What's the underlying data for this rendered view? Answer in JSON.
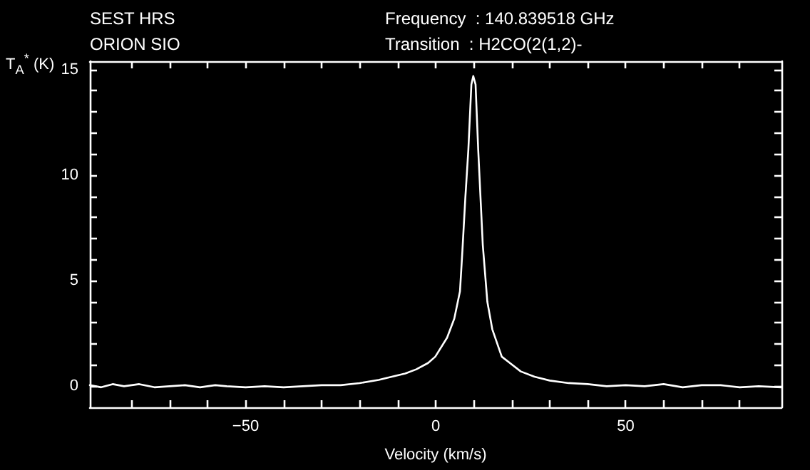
{
  "chart_data": {
    "type": "line",
    "annotations": [
      "SEST HRS",
      "ORION SIO",
      "Frequency  : 140.839518 GHz",
      "Transition  : H2CO(2(1,2)-"
    ],
    "xlabel": "Velocity (km/s)",
    "ylabel": "T$_{A}$$^{*}$ (K)",
    "xlim": [
      -91,
      91
    ],
    "ylim": [
      -1,
      15.4
    ],
    "xticks": [
      {
        "value": -80,
        "label": null
      },
      {
        "value": -70,
        "label": null
      },
      {
        "value": -60,
        "label": null
      },
      -50,
      {
        "value": -40,
        "label": null
      },
      {
        "value": -30,
        "label": null
      },
      {
        "value": -20,
        "label": null
      },
      {
        "value": -10,
        "label": null
      },
      0,
      {
        "value": 10,
        "label": null
      },
      {
        "value": 20,
        "label": null
      },
      {
        "value": 30,
        "label": null
      },
      {
        "value": 40,
        "label": null
      },
      50,
      {
        "value": 60,
        "label": null
      },
      {
        "value": 70,
        "label": null
      },
      {
        "value": 80,
        "label": null
      }
    ],
    "yticks": [
      0,
      {
        "value": 1,
        "label": null
      },
      {
        "value": 2,
        "label": null
      },
      {
        "value": 3,
        "label": null
      },
      {
        "value": 4,
        "label": null
      },
      5,
      {
        "value": 6,
        "label": null
      },
      {
        "value": 7,
        "label": null
      },
      {
        "value": 8,
        "label": null
      },
      {
        "value": 9,
        "label": null
      },
      10,
      {
        "value": 11,
        "label": null
      },
      {
        "value": 12,
        "label": null
      },
      {
        "value": 13,
        "label": null
      },
      {
        "value": 14,
        "label": null
      },
      15
    ],
    "grid": false,
    "marker": "none",
    "line_style": "solid",
    "series": [
      {
        "color": "#ffffff",
        "x": [
          -91,
          -88,
          -85,
          -82,
          -78,
          -74,
          -70,
          -66,
          -62,
          -58,
          -55,
          -50,
          -45,
          -40,
          -35,
          -30,
          -25,
          -20,
          -15,
          -12.7,
          -8,
          -5.1,
          -2,
          -0.1,
          3,
          4.9,
          6.4,
          7,
          7.8,
          8.6,
          9.4,
          9.9,
          10.5,
          11.2,
          12.4,
          13.6,
          14.9,
          17.4,
          22.4,
          26,
          30,
          35,
          40,
          45,
          50,
          55,
          60,
          65,
          70,
          75,
          80,
          85,
          91
        ],
        "values": [
          0.05,
          -0.05,
          0.1,
          0,
          0.1,
          -0.05,
          0,
          0.05,
          -0.05,
          0.05,
          0,
          -0.05,
          0,
          -0.05,
          0,
          0.05,
          0.05,
          0.15,
          0.3,
          0.4,
          0.6,
          0.8,
          1.1,
          1.4,
          2.3,
          3.2,
          4.5,
          6.3,
          8.9,
          11.2,
          14.3,
          14.7,
          14.3,
          11.2,
          6.7,
          4,
          2.7,
          1.4,
          0.7,
          0.45,
          0.27,
          0.15,
          0.1,
          0,
          0.05,
          0,
          0.1,
          -0.05,
          0.05,
          0.05,
          -0.05,
          0,
          -0.05
        ]
      }
    ]
  }
}
